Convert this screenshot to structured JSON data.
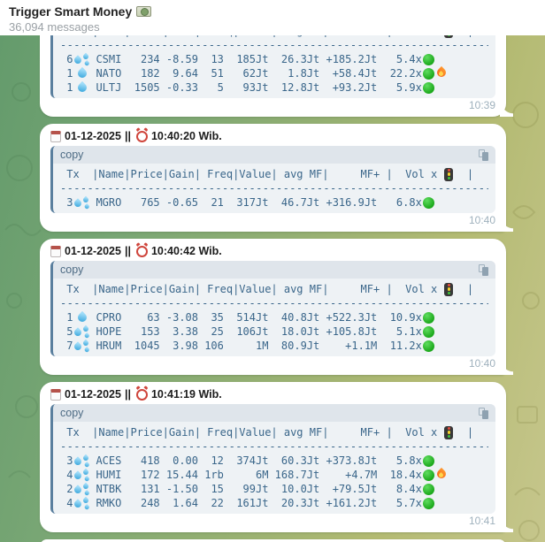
{
  "header": {
    "title": "Trigger Smart Money",
    "title_icon": "money-banknote",
    "subtitle": "36,094 messages"
  },
  "code": {
    "copy_label": "copy",
    "copy_icon": "copy-sheets",
    "header_left": " Tx  |Name|Price|Gain| Freq|Value| avg MF|     MF+ |  Vol x ",
    "header_icon": "traffic-light",
    "header_right": "  |",
    "divider": "----------------------------------------------------------------"
  },
  "colors": {
    "code_text": "#3a668a",
    "code_bg": "#eef2f5",
    "copy_bar_bg": "#dfe5eb",
    "code_border": "#5a7f9e",
    "bubble_bg": "#ffffff",
    "timestamp": "#9fb1bd",
    "signal_green": "#1fb41f",
    "fire_orange": "#ff8c1a",
    "droplet_blue": "#2b9fd8",
    "bg_gradient_left": "#649b6c",
    "bg_gradient_right": "#c6c68c"
  },
  "icons": {
    "liquidity_single": "droplet",
    "liquidity_multi": "sweat-droplets",
    "signal": "green-circle",
    "hot": "fire",
    "date": "spiral-calendar",
    "time": "alarm-clock"
  },
  "messages": [
    {
      "time": "10:39",
      "rows": [
        {
          "tx": "6",
          "drops": "multi",
          "name": "CSMI",
          "price": "234",
          "gain": "-8.59",
          "freq": "13",
          "value": "185Jt",
          "avg_mf": "26.3Jt",
          "mf_plus": "+185.2Jt",
          "vol_x": "5.4x",
          "signal": "green",
          "fire": false
        },
        {
          "tx": "1",
          "drops": "single",
          "name": "NATO",
          "price": "182",
          "gain": "9.64",
          "freq": "51",
          "value": "62Jt",
          "avg_mf": "1.8Jt",
          "mf_plus": "+58.4Jt",
          "vol_x": "22.2x",
          "signal": "green",
          "fire": true
        },
        {
          "tx": "1",
          "drops": "single",
          "name": "ULTJ",
          "price": "1505",
          "gain": "-0.33",
          "freq": "5",
          "value": "93Jt",
          "avg_mf": "12.8Jt",
          "mf_plus": "+93.2Jt",
          "vol_x": "5.9x",
          "signal": "green",
          "fire": false
        }
      ]
    },
    {
      "date": "01-12-2025",
      "separator": "||",
      "clock": "10:40:20 Wib.",
      "time": "10:40",
      "rows": [
        {
          "tx": "3",
          "drops": "multi",
          "name": "MGRO",
          "price": "765",
          "gain": "-0.65",
          "freq": "21",
          "value": "317Jt",
          "avg_mf": "46.7Jt",
          "mf_plus": "+316.9Jt",
          "vol_x": "6.8x",
          "signal": "green",
          "fire": false
        }
      ]
    },
    {
      "date": "01-12-2025",
      "separator": "||",
      "clock": "10:40:42 Wib.",
      "time": "10:40",
      "rows": [
        {
          "tx": "1",
          "drops": "single",
          "name": "CPRO",
          "price": "63",
          "gain": "-3.08",
          "freq": "35",
          "value": "514Jt",
          "avg_mf": "40.8Jt",
          "mf_plus": "+522.3Jt",
          "vol_x": "10.9x",
          "signal": "green",
          "fire": false
        },
        {
          "tx": "5",
          "drops": "multi",
          "name": "HOPE",
          "price": "153",
          "gain": "3.38",
          "freq": "25",
          "value": "106Jt",
          "avg_mf": "18.0Jt",
          "mf_plus": "+105.8Jt",
          "vol_x": "5.1x",
          "signal": "green",
          "fire": false
        },
        {
          "tx": "7",
          "drops": "multi",
          "name": "HRUM",
          "price": "1045",
          "gain": "3.98",
          "freq": "106",
          "value": "1M",
          "avg_mf": "80.9Jt",
          "mf_plus": "+1.1M",
          "vol_x": "11.2x",
          "signal": "green",
          "fire": false
        }
      ]
    },
    {
      "date": "01-12-2025",
      "separator": "||",
      "clock": "10:41:19 Wib.",
      "time": "10:41",
      "rows": [
        {
          "tx": "3",
          "drops": "multi",
          "name": "ACES",
          "price": "418",
          "gain": "0.00",
          "freq": "12",
          "value": "374Jt",
          "avg_mf": "60.3Jt",
          "mf_plus": "+373.8Jt",
          "vol_x": "5.8x",
          "signal": "green",
          "fire": false
        },
        {
          "tx": "4",
          "drops": "multi",
          "name": "HUMI",
          "price": "172",
          "gain": "15.44",
          "freq": "1rb",
          "value": "6M",
          "avg_mf": "168.7Jt",
          "mf_plus": "+4.7M",
          "vol_x": "18.4x",
          "signal": "green",
          "fire": true
        },
        {
          "tx": "2",
          "drops": "multi",
          "name": "NTBK",
          "price": "131",
          "gain": "-1.50",
          "freq": "15",
          "value": "99Jt",
          "avg_mf": "10.0Jt",
          "mf_plus": "+79.5Jt",
          "vol_x": "8.4x",
          "signal": "green",
          "fire": false
        },
        {
          "tx": "4",
          "drops": "multi",
          "name": "RMKO",
          "price": "248",
          "gain": "1.64",
          "freq": "22",
          "value": "161Jt",
          "avg_mf": "20.3Jt",
          "mf_plus": "+161.2Jt",
          "vol_x": "5.7x",
          "signal": "green",
          "fire": false
        }
      ]
    }
  ]
}
